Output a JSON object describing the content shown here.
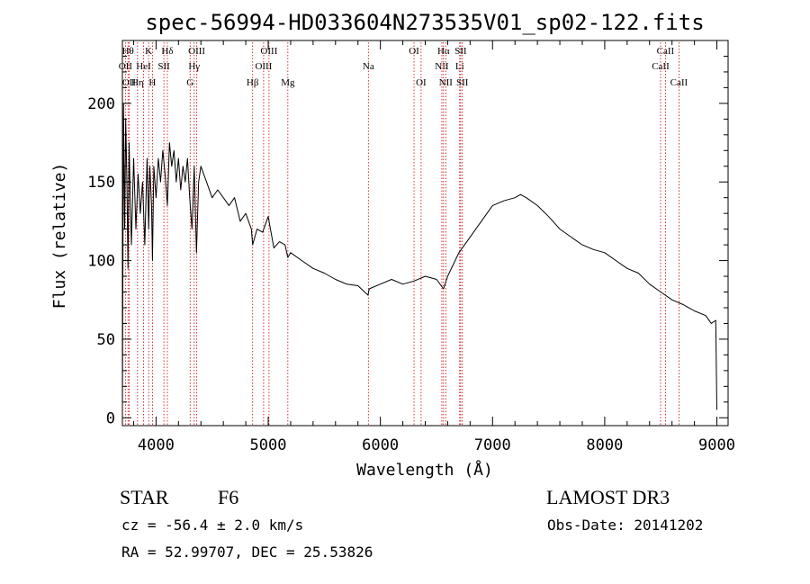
{
  "chart_data": {
    "type": "line",
    "title": "spec-56994-HD033604N273535V01_sp02-122.fits",
    "xlabel": "Wavelength (Å)",
    "ylabel": "Flux (relative)",
    "xlim": [
      3700,
      9100
    ],
    "ylim": [
      -5,
      240
    ],
    "xticks": [
      4000,
      5000,
      6000,
      7000,
      8000,
      9000
    ],
    "xtick_labels": [
      "4000",
      "5000",
      "6000",
      "7000",
      "8000",
      "9000"
    ],
    "yticks": [
      0,
      50,
      100,
      150,
      200
    ],
    "ytick_labels": [
      "0",
      "50",
      "100",
      "150",
      "200"
    ],
    "line_color": "#000000",
    "marker_color": "#cc0000",
    "series": [
      {
        "name": "spectrum",
        "x": [
          3700,
          3710,
          3720,
          3730,
          3740,
          3750,
          3760,
          3770,
          3780,
          3800,
          3820,
          3840,
          3860,
          3880,
          3900,
          3920,
          3934,
          3945,
          3960,
          3968,
          3980,
          4000,
          4020,
          4040,
          4060,
          4080,
          4101,
          4120,
          4140,
          4160,
          4180,
          4200,
          4220,
          4240,
          4260,
          4280,
          4300,
          4320,
          4340,
          4360,
          4380,
          4400,
          4450,
          4500,
          4550,
          4600,
          4650,
          4700,
          4750,
          4800,
          4850,
          4861,
          4900,
          4950,
          5000,
          5050,
          5100,
          5150,
          5175,
          5200,
          5300,
          5400,
          5500,
          5600,
          5700,
          5800,
          5890,
          5900,
          6000,
          6100,
          6200,
          6300,
          6400,
          6500,
          6563,
          6600,
          6700,
          6800,
          6900,
          7000,
          7100,
          7200,
          7250,
          7300,
          7400,
          7500,
          7600,
          7700,
          7800,
          7900,
          8000,
          8100,
          8200,
          8300,
          8400,
          8500,
          8600,
          8700,
          8800,
          8900,
          8950,
          8990,
          9000
        ],
        "y": [
          5,
          200,
          120,
          190,
          150,
          95,
          175,
          140,
          110,
          165,
          120,
          155,
          130,
          150,
          110,
          165,
          120,
          160,
          135,
          100,
          160,
          140,
          165,
          150,
          170,
          155,
          135,
          175,
          160,
          170,
          150,
          165,
          145,
          160,
          150,
          165,
          140,
          120,
          160,
          105,
          150,
          160,
          150,
          140,
          145,
          140,
          135,
          140,
          125,
          130,
          120,
          110,
          120,
          118,
          128,
          108,
          112,
          110,
          102,
          105,
          100,
          95,
          92,
          88,
          85,
          84,
          78,
          82,
          85,
          88,
          85,
          87,
          90,
          88,
          82,
          90,
          105,
          115,
          125,
          135,
          138,
          140,
          142,
          140,
          135,
          128,
          120,
          115,
          110,
          107,
          105,
          100,
          95,
          92,
          85,
          80,
          75,
          72,
          68,
          65,
          60,
          62,
          5
        ]
      }
    ],
    "lines": [
      {
        "label": "OII",
        "wavelength": 3727,
        "row": 1
      },
      {
        "label": "Hθ",
        "wavelength": 3750,
        "row": 0
      },
      {
        "label": "OII",
        "wavelength": 3760,
        "row": 2
      },
      {
        "label": "Hη",
        "wavelength": 3835,
        "row": 2
      },
      {
        "label": "HeI",
        "wavelength": 3889,
        "row": 1
      },
      {
        "label": "K",
        "wavelength": 3934,
        "row": 0
      },
      {
        "label": "H",
        "wavelength": 3968,
        "row": 2
      },
      {
        "label": "SII",
        "wavelength": 4070,
        "row": 1
      },
      {
        "label": "Hδ",
        "wavelength": 4101,
        "row": 0
      },
      {
        "label": "G",
        "wavelength": 4304,
        "row": 2
      },
      {
        "label": "Hγ",
        "wavelength": 4340,
        "row": 1
      },
      {
        "label": "OIII",
        "wavelength": 4363,
        "row": 0
      },
      {
        "label": "Hβ",
        "wavelength": 4861,
        "row": 2
      },
      {
        "label": "OIII",
        "wavelength": 4959,
        "row": 1
      },
      {
        "label": "OIII",
        "wavelength": 5007,
        "row": 0
      },
      {
        "label": "Mg",
        "wavelength": 5175,
        "row": 2
      },
      {
        "label": "Na",
        "wavelength": 5893,
        "row": 1
      },
      {
        "label": "OI",
        "wavelength": 6300,
        "row": 0
      },
      {
        "label": "OI",
        "wavelength": 6363,
        "row": 2
      },
      {
        "label": "NII",
        "wavelength": 6548,
        "row": 1
      },
      {
        "label": "Hα",
        "wavelength": 6563,
        "row": 0
      },
      {
        "label": "NII",
        "wavelength": 6583,
        "row": 2
      },
      {
        "label": "Li",
        "wavelength": 6707,
        "row": 1
      },
      {
        "label": "SII",
        "wavelength": 6716,
        "row": 0
      },
      {
        "label": "SII",
        "wavelength": 6731,
        "row": 2
      },
      {
        "label": "CaII",
        "wavelength": 8498,
        "row": 1
      },
      {
        "label": "CaII",
        "wavelength": 8542,
        "row": 0
      },
      {
        "label": "CaII",
        "wavelength": 8662,
        "row": 2
      }
    ]
  },
  "footer": {
    "object_class": "STAR",
    "subclass": "F6",
    "survey": "LAMOST DR3",
    "cz": "cz = -56.4 ± 2.0 km/s",
    "obs_date": "Obs-Date: 20141202",
    "coords": "RA =  52.99707, DEC =  25.53826"
  }
}
